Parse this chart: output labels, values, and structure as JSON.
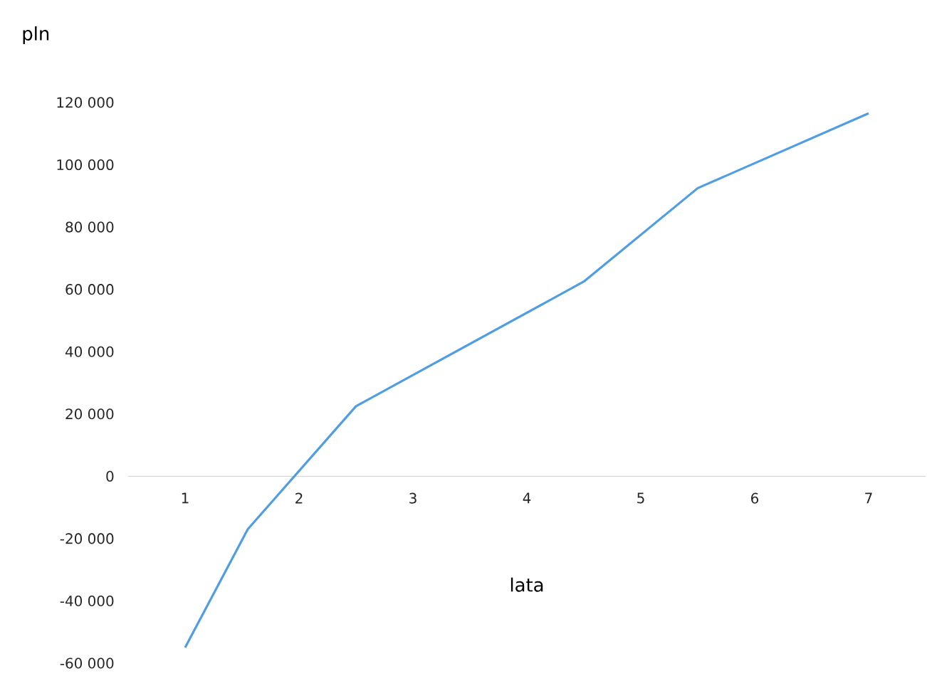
{
  "chart_data": {
    "type": "line",
    "xlabel": "lata",
    "ylabel": "pln",
    "x": [
      1,
      1.55,
      2.5,
      4.5,
      5.5,
      7
    ],
    "series": [
      {
        "color": "#4f9de3",
        "values": [
          -55000,
          -17000,
          22500,
          62500,
          92500,
          116500
        ]
      }
    ],
    "xlim": [
      0.5,
      7.5
    ],
    "xticks": [
      1,
      2,
      3,
      4,
      5,
      6,
      7
    ],
    "ylim": [
      -60000,
      120000
    ],
    "yticks": [
      {
        "value": -60000,
        "label": "-60 000"
      },
      {
        "value": -40000,
        "label": "-40 000"
      },
      {
        "value": -20000,
        "label": "-20 000"
      },
      0,
      {
        "value": 20000,
        "label": "20 000"
      },
      {
        "value": 40000,
        "label": "40 000"
      },
      {
        "value": 60000,
        "label": "60 000"
      },
      {
        "value": 80000,
        "label": "80 000"
      },
      {
        "value": 100000,
        "label": "100 000"
      },
      {
        "value": 120000,
        "label": "120 000"
      }
    ],
    "grid": false,
    "marker": "none",
    "line_style": "solid"
  }
}
